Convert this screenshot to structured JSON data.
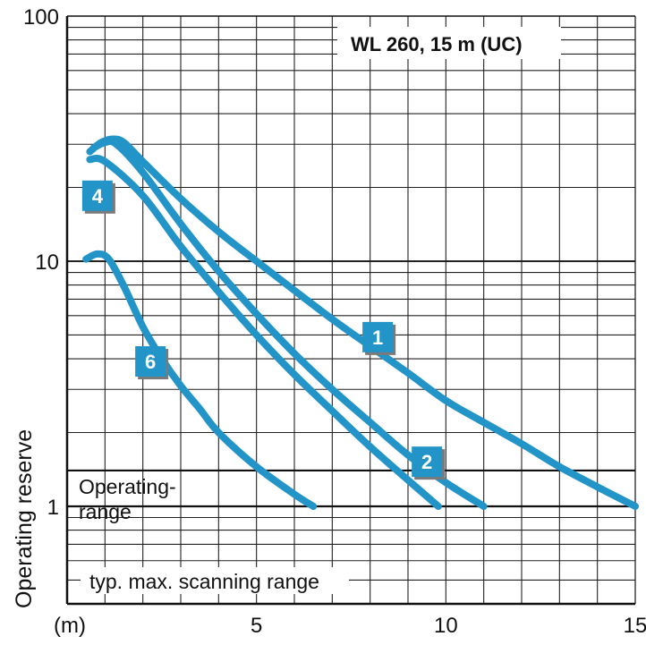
{
  "chart_data": {
    "type": "line",
    "title": "WL 260, 15 m (UC)",
    "xlabel": "(m)",
    "ylabel": "Operating reserve",
    "y_scale": "log",
    "xlim": [
      0,
      15
    ],
    "ylim": [
      0.4,
      100
    ],
    "x_ticks": [
      {
        "value": 0,
        "label": "(m)"
      },
      {
        "value": 5,
        "label": "5"
      },
      {
        "value": 10,
        "label": "10"
      },
      {
        "value": 15,
        "label": "15"
      }
    ],
    "y_ticks": [
      {
        "value": 1,
        "label": "1"
      },
      {
        "value": 10,
        "label": "10"
      },
      {
        "value": 100,
        "label": "100"
      }
    ],
    "grid": true,
    "reference_lines": [
      {
        "y": 1.4,
        "label": "Operating-\nrange"
      },
      {
        "y": 1.0,
        "label": "typ. max. scanning range"
      }
    ],
    "series": [
      {
        "name": "1",
        "color": "#2394c7",
        "x": [
          0.6,
          0.9,
          1.2,
          1.5,
          2.0,
          3.0,
          4.0,
          5.0,
          6.0,
          7.0,
          8.0,
          9.0,
          10.0,
          11.0,
          12.0,
          13.0,
          14.0,
          15.0
        ],
        "y": [
          28,
          30.5,
          31.5,
          30.5,
          25.5,
          18,
          13.2,
          10.0,
          7.6,
          5.8,
          4.5,
          3.5,
          2.7,
          2.2,
          1.8,
          1.45,
          1.2,
          1.0
        ]
      },
      {
        "name": "2",
        "color": "#2394c7",
        "x": [
          0.7,
          1.0,
          1.3,
          2.0,
          3.0,
          4.0,
          5.0,
          6.0,
          7.0,
          8.0,
          9.0,
          10.0,
          11.0
        ],
        "y": [
          29,
          30.5,
          30,
          23,
          14.2,
          9.1,
          6.1,
          4.2,
          3.0,
          2.2,
          1.62,
          1.25,
          1.0
        ]
      },
      {
        "name": "4",
        "color": "#2394c7",
        "x": [
          0.6,
          1.0,
          2.0,
          3.0,
          4.0,
          5.0,
          6.0,
          7.0,
          8.0,
          9.0,
          9.8
        ],
        "y": [
          26,
          25.5,
          18.5,
          11.5,
          7.5,
          5.0,
          3.45,
          2.45,
          1.75,
          1.28,
          1.0
        ]
      },
      {
        "name": "6",
        "color": "#2394c7",
        "x": [
          0.5,
          0.8,
          1.1,
          1.5,
          2.0,
          2.5,
          3.0,
          3.5,
          4.0,
          5.0,
          6.0,
          6.5
        ],
        "y": [
          10.2,
          10.7,
          10.2,
          7.9,
          5.4,
          4.0,
          3.1,
          2.5,
          2.0,
          1.45,
          1.12,
          1.0
        ]
      }
    ],
    "labels": [
      {
        "text": "1",
        "at_x": 8.2,
        "at_y": 4.9
      },
      {
        "text": "2",
        "at_x": 9.5,
        "at_y": 1.52
      },
      {
        "text": "4",
        "at_x": 0.8,
        "at_y": 18.5
      },
      {
        "text": "6",
        "at_x": 2.2,
        "at_y": 3.9
      }
    ]
  }
}
